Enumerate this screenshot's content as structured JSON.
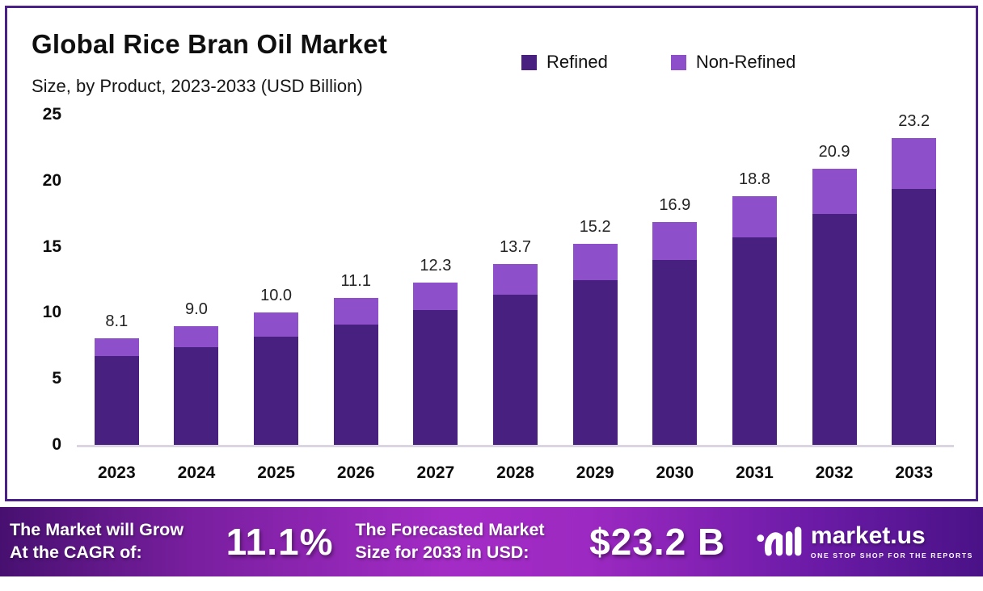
{
  "header": {
    "title": "Global Rice Bran Oil Market",
    "subtitle": "Size, by Product, 2023-2033 (USD Billion)"
  },
  "legend": {
    "items": [
      {
        "label": "Refined",
        "color": "#48207f"
      },
      {
        "label": "Non-Refined",
        "color": "#8d50ca"
      }
    ]
  },
  "chart_data": {
    "type": "bar",
    "stacked": true,
    "title": "Global Rice Bran Oil Market Size, by Product, 2023-2033 (USD Billion)",
    "xlabel": "",
    "ylabel": "",
    "ylim": [
      0,
      25
    ],
    "yticks": [
      25,
      20,
      15,
      10,
      5,
      0
    ],
    "grid": false,
    "legend_position": "top-right",
    "categories": [
      "2023",
      "2024",
      "2025",
      "2026",
      "2027",
      "2028",
      "2029",
      "2030",
      "2031",
      "2032",
      "2033"
    ],
    "series": [
      {
        "name": "Refined",
        "color": "#48207f",
        "values": [
          6.7,
          7.4,
          8.2,
          9.1,
          10.2,
          11.4,
          12.5,
          14.0,
          15.7,
          17.5,
          19.4
        ]
      },
      {
        "name": "Non-Refined",
        "color": "#8d50ca",
        "values": [
          1.4,
          1.6,
          1.8,
          2.0,
          2.1,
          2.3,
          2.7,
          2.9,
          3.1,
          3.4,
          3.8
        ]
      }
    ],
    "totals": [
      8.1,
      9.0,
      10.0,
      11.1,
      12.3,
      13.7,
      15.2,
      16.9,
      18.8,
      20.9,
      23.2
    ],
    "total_labels": [
      "8.1",
      "9.0",
      "10.0",
      "11.1",
      "12.3",
      "13.7",
      "15.2",
      "16.9",
      "18.8",
      "20.9",
      "23.2"
    ]
  },
  "banner": {
    "cagr_line1": "The Market will Grow",
    "cagr_line2": "At the CAGR of:",
    "cagr_value": "11.1%",
    "forecast_line1": "The Forecasted Market",
    "forecast_line2": "Size for 2033 in USD:",
    "forecast_value": "$23.2 B",
    "logo_name": "market.us",
    "logo_tagline": "ONE STOP SHOP FOR THE REPORTS"
  }
}
